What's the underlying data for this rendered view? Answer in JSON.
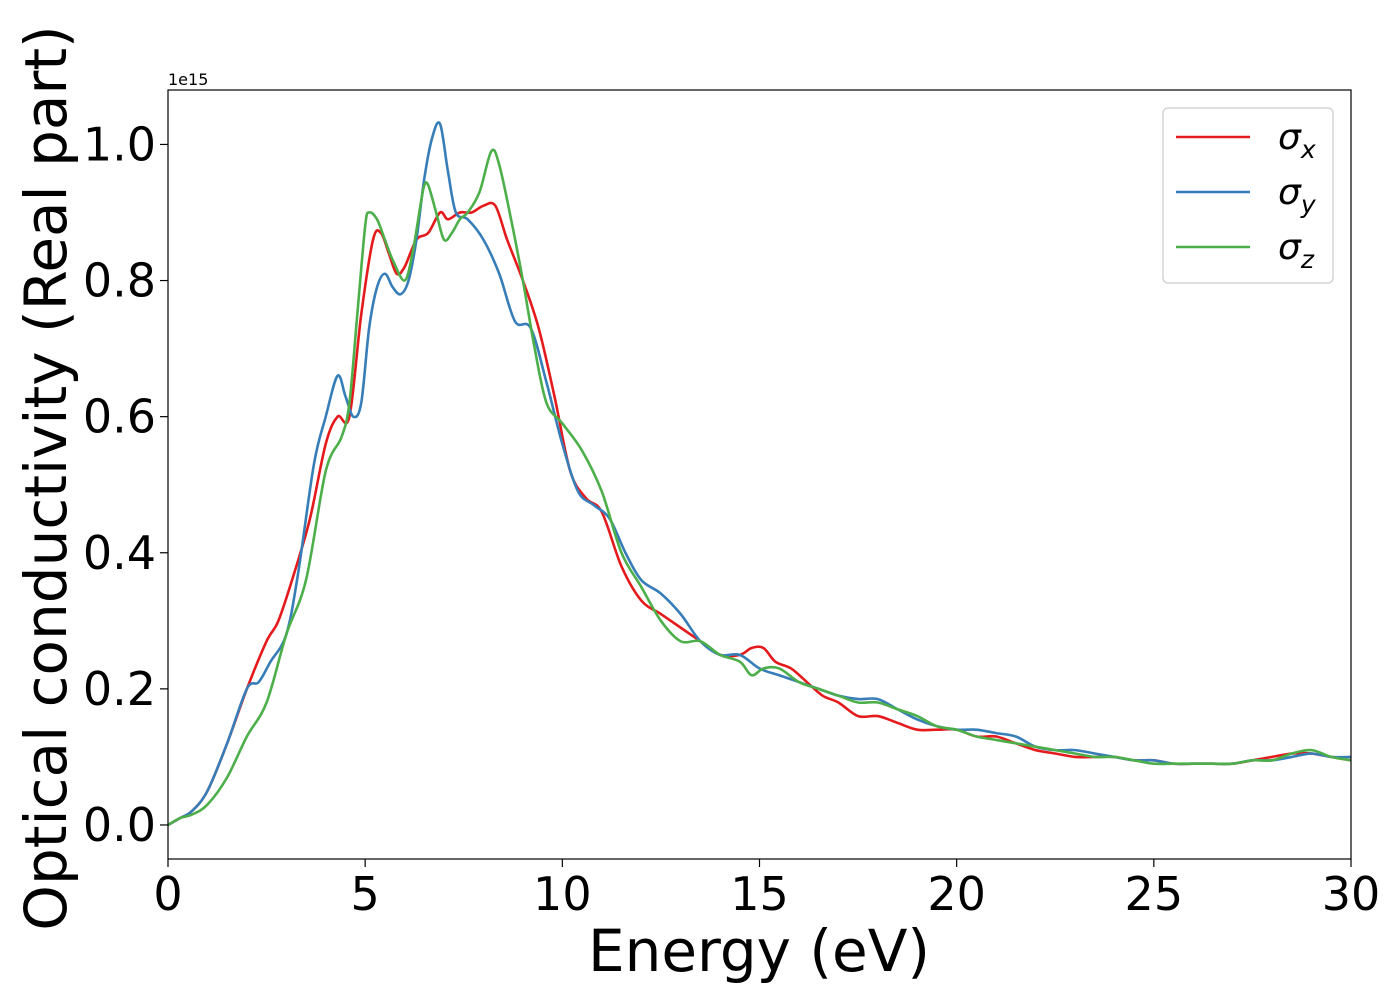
{
  "chart_data": {
    "type": "line",
    "xlabel": "Energy (eV)",
    "ylabel": "Optical conductivity (Real part)",
    "offset_text": "1e15",
    "xlim": [
      0,
      30
    ],
    "ylim": [
      -0.05,
      1.08
    ],
    "xticks": [
      0,
      5,
      10,
      15,
      20,
      25,
      30
    ],
    "xtick_labels": [
      "0",
      "5",
      "10",
      "15",
      "20",
      "25",
      "30"
    ],
    "yticks": [
      0.0,
      0.2,
      0.4,
      0.6,
      0.8,
      1.0
    ],
    "ytick_labels": [
      "0.0",
      "0.2",
      "0.4",
      "0.6",
      "0.8",
      "1.0"
    ],
    "legend_position": "top-right",
    "series": [
      {
        "name": "σx",
        "label_base": "σ",
        "label_sub": "x",
        "color": "#e41a1c",
        "x": [
          0,
          0.3,
          0.6,
          1.0,
          1.5,
          2.0,
          2.5,
          2.8,
          3.2,
          3.6,
          4.0,
          4.3,
          4.6,
          4.9,
          5.2,
          5.4,
          5.6,
          5.8,
          6.0,
          6.3,
          6.6,
          6.9,
          7.1,
          7.4,
          7.7,
          8.0,
          8.3,
          8.6,
          9.0,
          9.4,
          9.8,
          10.2,
          10.6,
          11.0,
          11.5,
          12.0,
          12.5,
          13.0,
          13.5,
          14.0,
          14.5,
          14.8,
          15.1,
          15.4,
          15.8,
          16.2,
          16.6,
          17.0,
          17.5,
          18.0,
          18.5,
          19.0,
          19.5,
          20.0,
          20.5,
          21.0,
          21.5,
          22.0,
          22.5,
          23.0,
          23.5,
          24.0,
          24.5,
          25.0,
          25.5,
          26.0,
          26.5,
          27.0,
          27.5,
          28.0,
          28.5,
          29.0,
          29.5,
          30.0
        ],
        "y": [
          0.0,
          0.01,
          0.02,
          0.05,
          0.12,
          0.2,
          0.27,
          0.3,
          0.37,
          0.45,
          0.56,
          0.6,
          0.6,
          0.75,
          0.86,
          0.87,
          0.84,
          0.81,
          0.82,
          0.86,
          0.87,
          0.9,
          0.89,
          0.9,
          0.9,
          0.91,
          0.91,
          0.86,
          0.8,
          0.73,
          0.63,
          0.52,
          0.48,
          0.46,
          0.38,
          0.33,
          0.31,
          0.29,
          0.27,
          0.25,
          0.25,
          0.26,
          0.26,
          0.24,
          0.23,
          0.21,
          0.19,
          0.18,
          0.16,
          0.16,
          0.15,
          0.14,
          0.14,
          0.14,
          0.13,
          0.13,
          0.12,
          0.11,
          0.105,
          0.1,
          0.1,
          0.1,
          0.095,
          0.095,
          0.09,
          0.09,
          0.09,
          0.09,
          0.095,
          0.1,
          0.105,
          0.105,
          0.1,
          0.095
        ]
      },
      {
        "name": "σy",
        "label_base": "σ",
        "label_sub": "y",
        "color": "#377eb8",
        "x": [
          0,
          0.3,
          0.6,
          1.0,
          1.5,
          2.0,
          2.3,
          2.6,
          3.0,
          3.3,
          3.7,
          4.0,
          4.3,
          4.5,
          4.7,
          4.9,
          5.1,
          5.3,
          5.5,
          5.7,
          5.9,
          6.1,
          6.3,
          6.5,
          6.7,
          6.9,
          7.1,
          7.3,
          7.6,
          8.0,
          8.4,
          8.8,
          9.2,
          9.6,
          10.0,
          10.4,
          10.8,
          11.2,
          11.6,
          12.0,
          12.5,
          13.0,
          13.5,
          14.0,
          14.5,
          15.0,
          15.5,
          16.0,
          16.5,
          17.0,
          17.5,
          18.0,
          18.5,
          19.0,
          19.5,
          20.0,
          20.5,
          21.0,
          21.5,
          22.0,
          22.5,
          23.0,
          23.5,
          24.0,
          24.5,
          25.0,
          25.5,
          26.0,
          26.5,
          27.0,
          27.5,
          28.0,
          28.5,
          29.0,
          29.5,
          30.0
        ],
        "y": [
          0.0,
          0.01,
          0.02,
          0.05,
          0.12,
          0.2,
          0.21,
          0.24,
          0.28,
          0.37,
          0.53,
          0.6,
          0.66,
          0.63,
          0.6,
          0.62,
          0.73,
          0.79,
          0.81,
          0.79,
          0.78,
          0.8,
          0.86,
          0.95,
          1.01,
          1.03,
          0.96,
          0.9,
          0.89,
          0.86,
          0.81,
          0.74,
          0.73,
          0.65,
          0.56,
          0.49,
          0.47,
          0.45,
          0.4,
          0.36,
          0.34,
          0.31,
          0.27,
          0.25,
          0.25,
          0.23,
          0.22,
          0.21,
          0.2,
          0.19,
          0.185,
          0.185,
          0.17,
          0.155,
          0.145,
          0.14,
          0.14,
          0.135,
          0.13,
          0.115,
          0.11,
          0.11,
          0.105,
          0.1,
          0.095,
          0.095,
          0.09,
          0.09,
          0.09,
          0.09,
          0.095,
          0.095,
          0.1,
          0.105,
          0.1,
          0.1
        ]
      },
      {
        "name": "σz",
        "label_base": "σ",
        "label_sub": "z",
        "color": "#4daf4a",
        "x": [
          0,
          0.3,
          0.6,
          1.0,
          1.5,
          2.0,
          2.5,
          3.0,
          3.5,
          4.0,
          4.4,
          4.6,
          4.8,
          5.0,
          5.1,
          5.3,
          5.5,
          5.7,
          6.0,
          6.2,
          6.4,
          6.5,
          6.6,
          6.8,
          7.0,
          7.2,
          7.4,
          7.6,
          7.9,
          8.2,
          8.4,
          8.7,
          9.0,
          9.3,
          9.6,
          10.0,
          10.5,
          11.0,
          11.5,
          12.0,
          12.5,
          13.0,
          13.5,
          14.0,
          14.5,
          14.8,
          15.1,
          15.5,
          16.0,
          16.5,
          17.0,
          17.5,
          18.0,
          18.5,
          19.0,
          19.5,
          20.0,
          20.5,
          21.0,
          21.5,
          22.0,
          22.5,
          23.0,
          23.5,
          24.0,
          24.5,
          25.0,
          25.5,
          26.0,
          26.5,
          27.0,
          27.5,
          28.0,
          28.5,
          29.0,
          29.5,
          30.0
        ],
        "y": [
          0.0,
          0.01,
          0.015,
          0.03,
          0.07,
          0.13,
          0.18,
          0.28,
          0.36,
          0.52,
          0.57,
          0.62,
          0.75,
          0.88,
          0.9,
          0.89,
          0.86,
          0.83,
          0.8,
          0.84,
          0.91,
          0.94,
          0.94,
          0.9,
          0.86,
          0.87,
          0.89,
          0.9,
          0.93,
          0.99,
          0.97,
          0.89,
          0.8,
          0.7,
          0.62,
          0.59,
          0.55,
          0.49,
          0.4,
          0.35,
          0.3,
          0.27,
          0.27,
          0.25,
          0.24,
          0.22,
          0.23,
          0.23,
          0.21,
          0.2,
          0.19,
          0.18,
          0.18,
          0.17,
          0.16,
          0.145,
          0.14,
          0.13,
          0.125,
          0.12,
          0.115,
          0.11,
          0.105,
          0.1,
          0.1,
          0.095,
          0.09,
          0.09,
          0.09,
          0.09,
          0.09,
          0.095,
          0.095,
          0.105,
          0.11,
          0.1,
          0.095
        ]
      }
    ]
  }
}
